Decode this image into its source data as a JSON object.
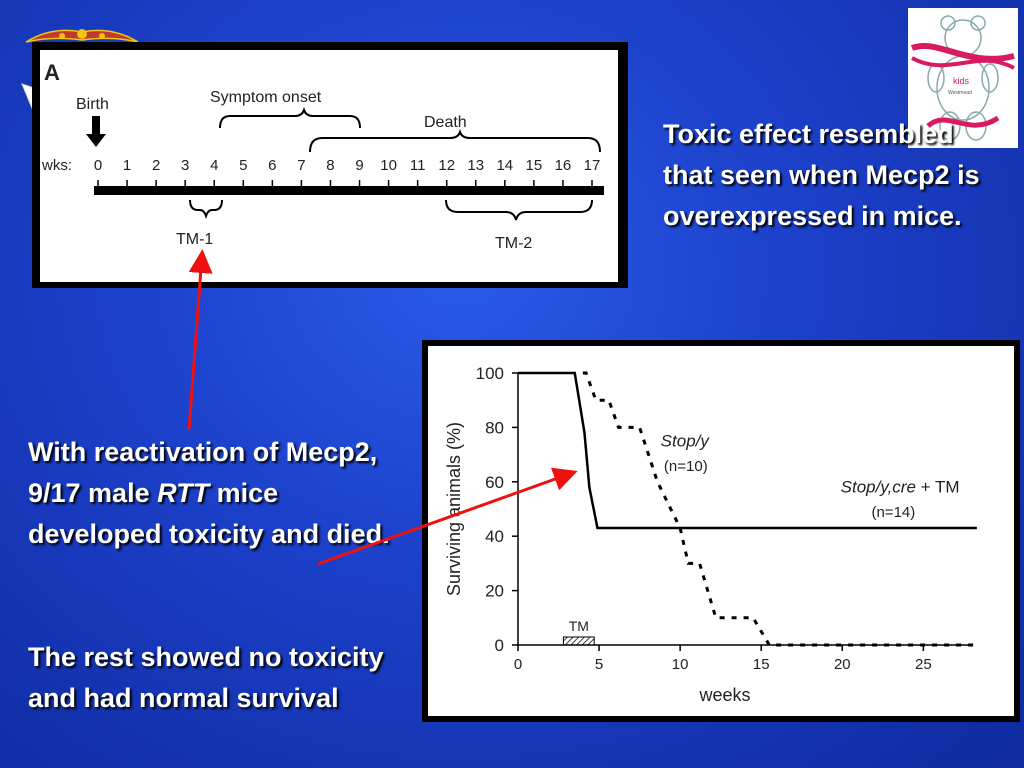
{
  "slide": {
    "toxic_text": "Toxic effect resembled that seen when Mecp2 is overexpressed in mice.",
    "react_text_pre": "With reactivation of Mecp2, 9/17 male ",
    "react_text_italic": "RTT",
    "react_text_post": " mice developed toxicity and died.",
    "rest_text": "The rest showed no toxicity and had normal survival",
    "arrow_color": "#ee1111",
    "bear_caption": "kids",
    "bear_caption2": "Westmead"
  },
  "timeline": {
    "panel_label": "A",
    "birth_label": "Birth",
    "symptom_label": "Symptom onset",
    "death_label": "Death",
    "wks_label": "wks:",
    "weeks": [
      "0",
      "1",
      "2",
      "3",
      "4",
      "5",
      "6",
      "7",
      "8",
      "9",
      "10",
      "11",
      "12",
      "13",
      "14",
      "15",
      "16",
      "17"
    ],
    "tm1_label": "TM-1",
    "tm2_label": "TM-2"
  },
  "chart_data": {
    "type": "line",
    "xlabel": "weeks",
    "ylabel": "Surviving animals (%)",
    "xlim": [
      0,
      28
    ],
    "ylim": [
      0,
      100
    ],
    "xticks": [
      0,
      5,
      10,
      15,
      20,
      25
    ],
    "yticks": [
      0,
      20,
      40,
      60,
      80,
      100
    ],
    "series": [
      {
        "name": "Stop/y",
        "n_label": "(n=10)",
        "style": "dashed",
        "points": [
          [
            4,
            100
          ],
          [
            4.2,
            100
          ],
          [
            4.8,
            90
          ],
          [
            5.6,
            90
          ],
          [
            6.2,
            80
          ],
          [
            7.5,
            80
          ],
          [
            8.6,
            60
          ],
          [
            10,
            43
          ],
          [
            10.5,
            30
          ],
          [
            11.2,
            30
          ],
          [
            12.2,
            10
          ],
          [
            14.5,
            10
          ],
          [
            15.5,
            0
          ],
          [
            28.3,
            0
          ]
        ]
      },
      {
        "name": "Stop/y,cre",
        "name_suffix": " + TM",
        "n_label": "(n=14)",
        "style": "solid",
        "points": [
          [
            0,
            100
          ],
          [
            3.5,
            100
          ],
          [
            4.1,
            78
          ],
          [
            4.4,
            58
          ],
          [
            4.9,
            43
          ],
          [
            28.3,
            43
          ]
        ]
      }
    ],
    "annotation": "TM",
    "tm_bar": [
      2.8,
      4.7
    ]
  }
}
